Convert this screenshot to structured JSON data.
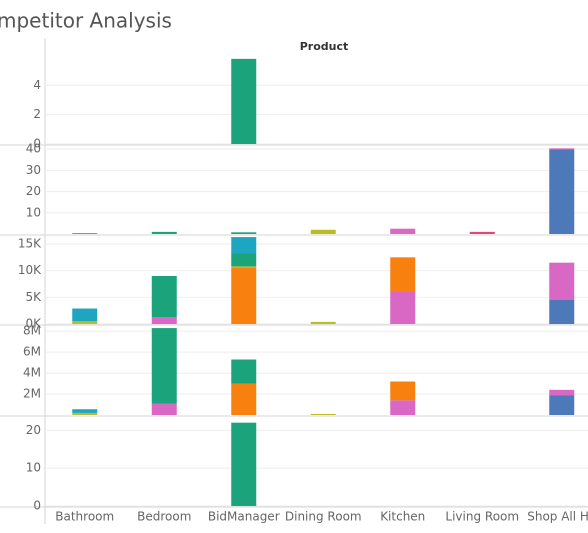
{
  "chart_data": {
    "type": "bar",
    "title": "mpetitor Analysis",
    "header": "Product",
    "categories": [
      "Bathroom",
      "Bedroom",
      "BidManager",
      "Dining Room",
      "Kitchen",
      "Living Room",
      "Shop All Ho"
    ],
    "grid": true,
    "panels": [
      {
        "ylim": [
          0,
          6.2
        ],
        "yticks": [
          0,
          2,
          4
        ],
        "series": [
          {
            "color": "#1ba47c",
            "values": [
              null,
              null,
              5.8,
              null,
              null,
              null,
              null
            ]
          }
        ]
      },
      {
        "ylim": [
          0,
          41.5
        ],
        "yticks": [
          10,
          20,
          30,
          40
        ],
        "series": [
          {
            "color": "#4e79b8",
            "values": [
              null,
              null,
              null,
              null,
              null,
              null,
              40
            ]
          },
          {
            "color": "#d967c4",
            "values": [
              null,
              null,
              null,
              null,
              2.5,
              null,
              0.4
            ]
          },
          {
            "color": "#bcbd22",
            "values": [
              null,
              null,
              null,
              2,
              null,
              null,
              null
            ]
          },
          {
            "color": "#1ba47c",
            "values": [
              null,
              1,
              0.8,
              null,
              null,
              null,
              null
            ]
          },
          {
            "color": "#1ea5c2",
            "values": [
              0.4,
              null,
              null,
              null,
              null,
              null,
              null
            ]
          },
          {
            "color": "#e0457b",
            "values": [
              null,
              null,
              null,
              null,
              null,
              1,
              null
            ]
          }
        ]
      },
      {
        "ylim": [
          0,
          16500
        ],
        "yticks": [
          {
            "value": 0,
            "label": "0K"
          },
          {
            "value": 5000,
            "label": "5K"
          },
          {
            "value": 10000,
            "label": "10K"
          },
          {
            "value": 15000,
            "label": "15K"
          }
        ],
        "series": [
          {
            "color": "#4e79b8",
            "values": [
              null,
              null,
              null,
              null,
              null,
              null,
              4500
            ]
          },
          {
            "color": "#d967c4",
            "values": [
              null,
              1300,
              null,
              null,
              6000,
              null,
              7000
            ]
          },
          {
            "color": "#f7800e",
            "values": [
              null,
              null,
              10500,
              null,
              6500,
              null,
              null
            ]
          },
          {
            "color": "#bcbd22",
            "values": [
              500,
              null,
              300,
              400,
              null,
              null,
              null
            ]
          },
          {
            "color": "#1ba47c",
            "values": [
              null,
              7700,
              2500,
              null,
              null,
              null,
              null
            ]
          },
          {
            "color": "#1ea5c2",
            "values": [
              2400,
              null,
              3000,
              null,
              null,
              null,
              null
            ]
          }
        ]
      },
      {
        "ylim": [
          0,
          8500000
        ],
        "yticks": [
          {
            "value": 2000000,
            "label": "2M"
          },
          {
            "value": 4000000,
            "label": "4M"
          },
          {
            "value": 6000000,
            "label": "6M"
          },
          {
            "value": 8000000,
            "label": "8M"
          }
        ],
        "series": [
          {
            "color": "#4e79b8",
            "values": [
              null,
              null,
              null,
              null,
              null,
              null,
              1900000
            ]
          },
          {
            "color": "#d967c4",
            "values": [
              null,
              1100000,
              null,
              null,
              1400000,
              null,
              500000
            ]
          },
          {
            "color": "#f7800e",
            "values": [
              null,
              null,
              3000000,
              null,
              1800000,
              null,
              null
            ]
          },
          {
            "color": "#bcbd22",
            "values": [
              200000,
              null,
              null,
              100000,
              null,
              null,
              null
            ]
          },
          {
            "color": "#1ba47c",
            "values": [
              null,
              7200000,
              2300000,
              null,
              null,
              null,
              null
            ]
          },
          {
            "color": "#1ea5c2",
            "values": [
              350000,
              null,
              null,
              null,
              null,
              null,
              null
            ]
          }
        ]
      },
      {
        "ylim": [
          0,
          23.5
        ],
        "yticks": [
          0,
          10,
          20
        ],
        "series": [
          {
            "color": "#1ba47c",
            "values": [
              null,
              null,
              22,
              null,
              null,
              null,
              null
            ]
          }
        ]
      }
    ]
  }
}
